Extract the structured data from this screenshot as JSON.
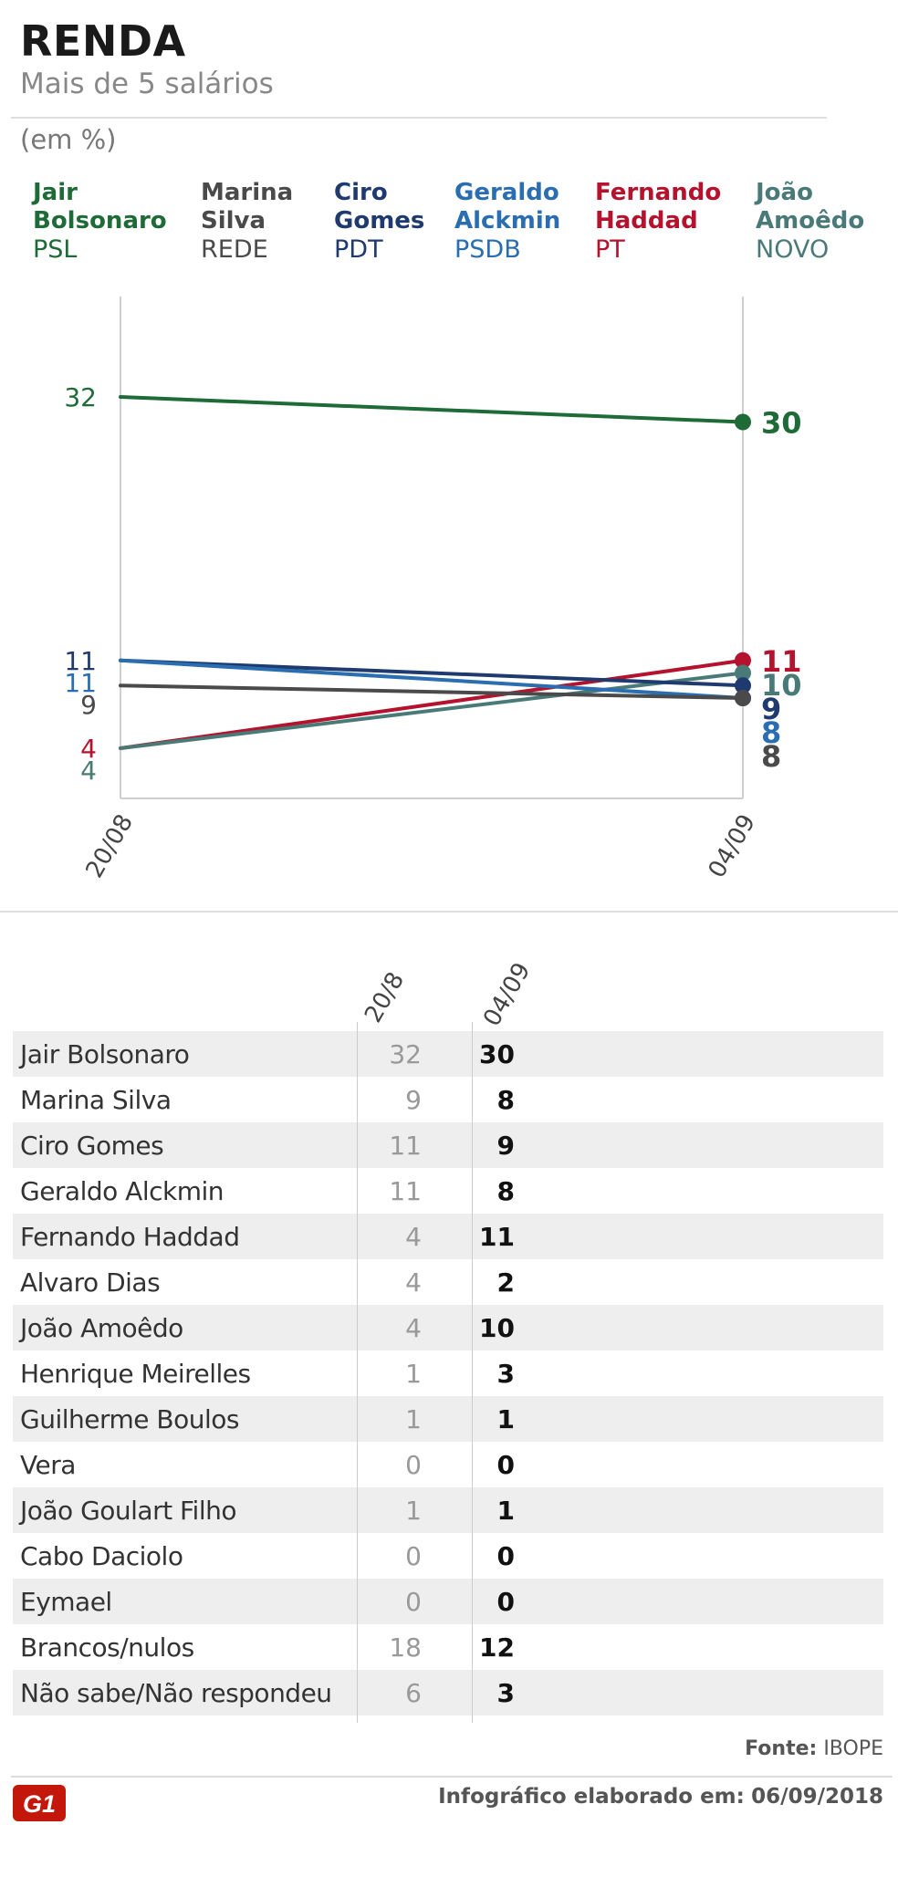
{
  "header": {
    "title": "RENDA",
    "subtitle": "Mais de 5 salários",
    "unit": "(em %)"
  },
  "legend": [
    {
      "name_line1": "Jair",
      "name_line2": "Bolsonaro",
      "party": "PSL",
      "color": "#1e6b37"
    },
    {
      "name_line1": "Marina",
      "name_line2": "Silva",
      "party": "REDE",
      "color": "#4a4a4a"
    },
    {
      "name_line1": "Ciro",
      "name_line2": "Gomes",
      "party": "PDT",
      "color": "#1f3a6e"
    },
    {
      "name_line1": "Geraldo",
      "name_line2": "Alckmin",
      "party": "PSDB",
      "color": "#2a6db0"
    },
    {
      "name_line1": "Fernando",
      "name_line2": "Haddad",
      "party": "PT",
      "color": "#b5122d"
    },
    {
      "name_line1": "João",
      "name_line2": "Amoêdo",
      "party": "NOVO",
      "color": "#4a7a78"
    }
  ],
  "chart_data": {
    "type": "line",
    "x": [
      "20/08",
      "04/09"
    ],
    "ylim": [
      0,
      40
    ],
    "series": [
      {
        "name": "Jair Bolsonaro",
        "color": "#1e6b37",
        "values": [
          32,
          30
        ]
      },
      {
        "name": "Fernando Haddad",
        "color": "#b5122d",
        "values": [
          4,
          11
        ]
      },
      {
        "name": "João Amoêdo",
        "color": "#4a7a78",
        "values": [
          4,
          10
        ]
      },
      {
        "name": "Ciro Gomes",
        "color": "#1f3a6e",
        "values": [
          11,
          9
        ]
      },
      {
        "name": "Geraldo Alckmin",
        "color": "#2a6db0",
        "values": [
          11,
          8
        ]
      },
      {
        "name": "Marina Silva",
        "color": "#4a4a4a",
        "values": [
          9,
          8
        ]
      }
    ]
  },
  "table": {
    "col1": "20/8",
    "col2": "04/09",
    "rows": [
      {
        "name": "Jair Bolsonaro",
        "v1": "32",
        "v2": "30"
      },
      {
        "name": "Marina Silva",
        "v1": "9",
        "v2": "8"
      },
      {
        "name": "Ciro Gomes",
        "v1": "11",
        "v2": "9"
      },
      {
        "name": "Geraldo Alckmin",
        "v1": "11",
        "v2": "8"
      },
      {
        "name": "Fernando Haddad",
        "v1": "4",
        "v2": "11"
      },
      {
        "name": "Alvaro Dias",
        "v1": "4",
        "v2": "2"
      },
      {
        "name": "João Amoêdo",
        "v1": "4",
        "v2": "10"
      },
      {
        "name": "Henrique Meirelles",
        "v1": "1",
        "v2": "3"
      },
      {
        "name": "Guilherme Boulos",
        "v1": "1",
        "v2": "1"
      },
      {
        "name": "Vera",
        "v1": "0",
        "v2": "0"
      },
      {
        "name": "João Goulart Filho",
        "v1": "1",
        "v2": "1"
      },
      {
        "name": "Cabo Daciolo",
        "v1": "0",
        "v2": "0"
      },
      {
        "name": "Eymael",
        "v1": "0",
        "v2": "0"
      },
      {
        "name": "Brancos/nulos",
        "v1": "18",
        "v2": "12"
      },
      {
        "name": "Não sabe/Não respondeu",
        "v1": "6",
        "v2": "3"
      }
    ]
  },
  "footer": {
    "source_label": "Fonte:",
    "source_value": "IBOPE",
    "credit_label": "Infográfico elaborado em:",
    "credit_date": "06/09/2018",
    "logo_text": "G1",
    "logo_color": "#c4170c"
  }
}
